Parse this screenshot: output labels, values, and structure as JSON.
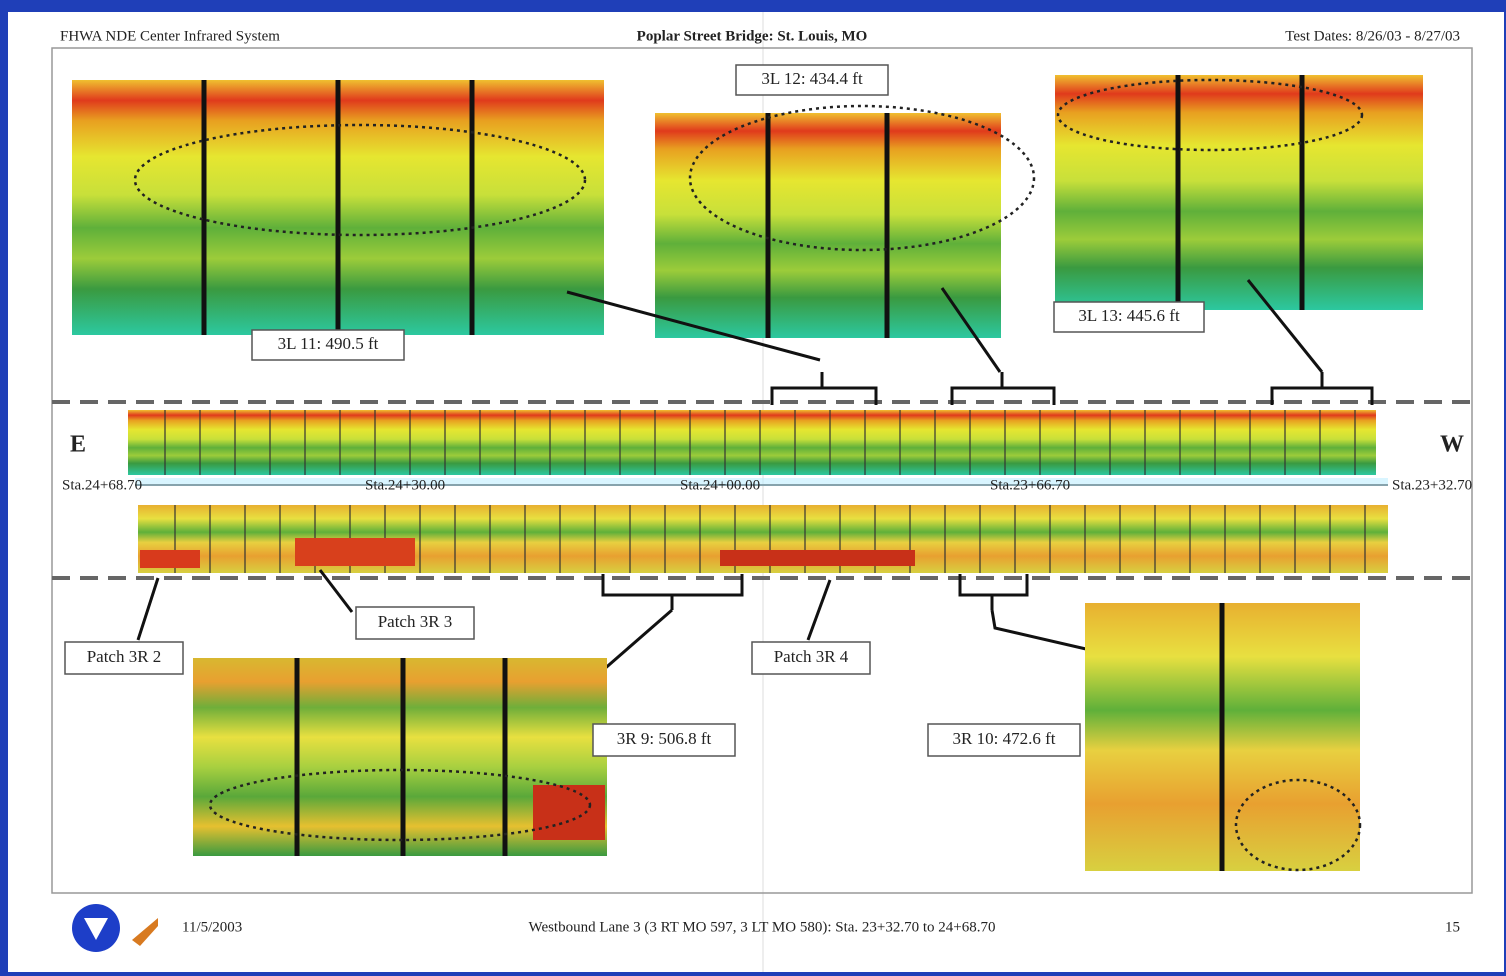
{
  "header": {
    "left": "FHWA NDE Center Infrared System",
    "title": "Poplar Street Bridge: St. Louis, MO",
    "right": "Test Dates: 8/26/03 - 8/27/03"
  },
  "callouts": [
    "3L 11: 490.5 ft",
    "3L 12: 434.4 ft",
    "3L 13: 445.6 ft",
    "3R 9: 506.8 ft",
    "3R 10: 472.6 ft"
  ],
  "directions": {
    "east": "E",
    "west": "W"
  },
  "stations": [
    "Sta.24+68.70",
    "Sta.24+30.00",
    "Sta.24+00.00",
    "Sta.23+66.70",
    "Sta.23+32.70"
  ],
  "patches": [
    "Patch 3R 2",
    "Patch 3R 3",
    "Patch 3R 4"
  ],
  "footer": {
    "date": "11/5/2003",
    "description": "Westbound Lane 3 (3 RT MO 597, 3 LT MO 580): Sta. 23+32.70 to 24+68.70",
    "page": "15"
  }
}
